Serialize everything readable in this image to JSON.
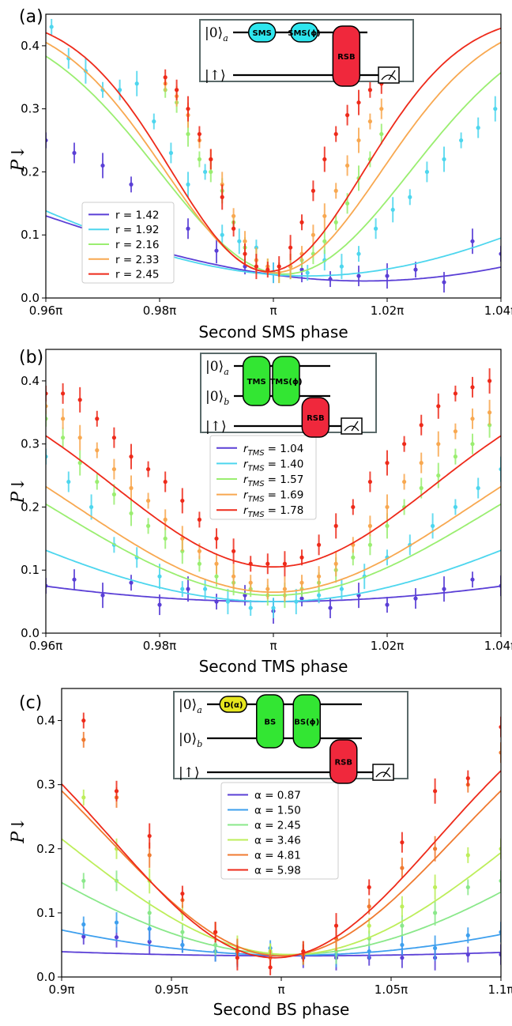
{
  "figure": {
    "panels": [
      {
        "label": "(a)",
        "circuit": {
          "rows": [
            {
              "ket": "|0⟩",
              "sub": "a"
            },
            {
              "ket": "|↑⟩",
              "sub": ""
            }
          ],
          "gates": [
            "SMS",
            "SMS(ϕ)",
            "RSB"
          ],
          "gate_colors": [
            "#2ee6ee",
            "#2ee6ee",
            "#f0283c"
          ]
        }
      },
      {
        "label": "(b)",
        "circuit": {
          "rows": [
            {
              "ket": "|0⟩",
              "sub": "a"
            },
            {
              "ket": "|0⟩",
              "sub": "b"
            },
            {
              "ket": "|↑⟩",
              "sub": ""
            }
          ],
          "gates": [
            "TMS",
            "TMS(ϕ)",
            "RSB"
          ],
          "gate_colors": [
            "#33e633",
            "#33e633",
            "#f0283c"
          ]
        }
      },
      {
        "label": "(c)",
        "circuit": {
          "rows": [
            {
              "ket": "|0⟩",
              "sub": "a"
            },
            {
              "ket": "|0⟩",
              "sub": "b"
            },
            {
              "ket": "|↑⟩",
              "sub": ""
            }
          ],
          "gates": [
            "D(α)",
            "BS",
            "BS(ϕ)",
            "RSB"
          ],
          "gate_colors": [
            "#e6e61e",
            "#33e633",
            "#33e633",
            "#f0283c"
          ]
        }
      }
    ]
  },
  "chart_data": [
    {
      "type": "line",
      "panel": "(a)",
      "xlabel": "Second SMS phase",
      "ylabel": "P↓",
      "xlim": [
        0.96,
        1.04
      ],
      "ylim": [
        0.0,
        0.45
      ],
      "xticks": [
        0.96,
        0.98,
        1.0,
        1.02,
        1.04
      ],
      "xtick_labels": [
        "0.96π",
        "0.98π",
        "π",
        "1.02π",
        "1.04π"
      ],
      "yticks": [
        0.0,
        0.1,
        0.2,
        0.3,
        0.4
      ],
      "ytick_labels": [
        "0.0",
        "0.1",
        "0.2",
        "0.3",
        "0.4"
      ],
      "legend_position": "lower-left",
      "series": [
        {
          "name": "r = 1.42",
          "color": "#5a3fd6",
          "fit": {
            "min_x": 1.016,
            "min_y": 0.027,
            "max_y": 0.36,
            "width": 0.065
          },
          "data_x": [
            0.96,
            0.965,
            0.97,
            0.975,
            0.985,
            0.99,
            0.995,
            1.0,
            1.005,
            1.01,
            1.015,
            1.02,
            1.025,
            1.03,
            1.035,
            1.04
          ],
          "data_y": [
            0.25,
            0.23,
            0.21,
            0.18,
            0.11,
            0.075,
            0.05,
            0.04,
            0.045,
            0.03,
            0.035,
            0.035,
            0.045,
            0.025,
            0.09,
            0.07
          ]
        },
        {
          "name": "r = 1.92",
          "color": "#4dd6ee",
          "fit": {
            "min_x": 1.006,
            "min_y": 0.035,
            "max_y": 0.44,
            "width": 0.06
          },
          "data_x": [
            0.961,
            0.964,
            0.967,
            0.97,
            0.973,
            0.976,
            0.979,
            0.982,
            0.985,
            0.988,
            0.991,
            0.994,
            0.997,
            1.0,
            1.003,
            1.006,
            1.009,
            1.012,
            1.015,
            1.018,
            1.021,
            1.024,
            1.027,
            1.03,
            1.033,
            1.036,
            1.039
          ],
          "data_y": [
            0.43,
            0.38,
            0.36,
            0.33,
            0.33,
            0.34,
            0.28,
            0.23,
            0.18,
            0.2,
            0.1,
            0.09,
            0.08,
            0.04,
            0.05,
            0.04,
            0.06,
            0.05,
            0.07,
            0.11,
            0.14,
            0.16,
            0.2,
            0.22,
            0.25,
            0.27,
            0.3
          ]
        },
        {
          "name": "r = 2.16",
          "color": "#9aee70",
          "fit": {
            "min_x": 1.002,
            "min_y": 0.038,
            "max_y": 0.45,
            "width": 0.022
          },
          "data_x": [
            0.981,
            0.983,
            0.985,
            0.987,
            0.989,
            0.991,
            0.993,
            0.995,
            0.997,
            0.999,
            1.001,
            1.003,
            1.005,
            1.007,
            1.009,
            1.011,
            1.013,
            1.015,
            1.017,
            1.019
          ],
          "data_y": [
            0.33,
            0.31,
            0.26,
            0.22,
            0.2,
            0.17,
            0.12,
            0.08,
            0.06,
            0.05,
            0.04,
            0.05,
            0.06,
            0.07,
            0.09,
            0.12,
            0.15,
            0.19,
            0.22,
            0.26
          ]
        },
        {
          "name": "r = 2.33",
          "color": "#f8a850",
          "fit": {
            "min_x": 1.0,
            "min_y": 0.04,
            "max_y": 0.45,
            "width": 0.019
          },
          "data_x": [
            0.981,
            0.983,
            0.985,
            0.987,
            0.989,
            0.991,
            0.993,
            0.995,
            0.997,
            0.999,
            1.001,
            1.003,
            1.005,
            1.007,
            1.009,
            1.011,
            1.013,
            1.015,
            1.017,
            1.019
          ],
          "data_y": [
            0.34,
            0.32,
            0.29,
            0.25,
            0.22,
            0.18,
            0.13,
            0.09,
            0.06,
            0.05,
            0.04,
            0.05,
            0.07,
            0.1,
            0.13,
            0.17,
            0.21,
            0.25,
            0.28,
            0.3
          ]
        },
        {
          "name": "r = 2.45",
          "color": "#ee2a1a",
          "fit": {
            "min_x": 0.999,
            "min_y": 0.042,
            "max_y": 0.45,
            "width": 0.017
          },
          "data_x": [
            0.981,
            0.983,
            0.985,
            0.987,
            0.989,
            0.991,
            0.993,
            0.995,
            0.997,
            0.999,
            1.001,
            1.003,
            1.005,
            1.007,
            1.009,
            1.011,
            1.013,
            1.015,
            1.017,
            1.019
          ],
          "data_y": [
            0.35,
            0.33,
            0.3,
            0.26,
            0.22,
            0.16,
            0.11,
            0.07,
            0.05,
            0.045,
            0.05,
            0.08,
            0.12,
            0.17,
            0.22,
            0.26,
            0.29,
            0.31,
            0.33,
            0.34
          ]
        }
      ]
    },
    {
      "type": "line",
      "panel": "(b)",
      "xlabel": "Second TMS phase",
      "ylabel": "P↓",
      "xlim": [
        0.96,
        1.04
      ],
      "ylim": [
        0.0,
        0.45
      ],
      "xticks": [
        0.96,
        0.98,
        1.0,
        1.02,
        1.04
      ],
      "xtick_labels": [
        "0.96π",
        "0.98π",
        "π",
        "1.02π",
        "1.04π"
      ],
      "yticks": [
        0.0,
        0.1,
        0.2,
        0.3,
        0.4
      ],
      "ytick_labels": [
        "0.0",
        "0.1",
        "0.2",
        "0.3",
        "0.4"
      ],
      "legend_position": "upper-center",
      "legend_var": "r",
      "legend_sub": "TMS",
      "series": [
        {
          "name": "r_TMS = 1.04",
          "label_value": "= 1.04",
          "color": "#5a3fd6",
          "fit": {
            "min_x": 1.0,
            "min_y": 0.05,
            "max_y": 0.4,
            "width": 0.105
          },
          "data_x": [
            0.96,
            0.965,
            0.97,
            0.975,
            0.98,
            0.985,
            0.99,
            0.995,
            1.0,
            1.005,
            1.01,
            1.015,
            1.02,
            1.025,
            1.03,
            1.035,
            1.04
          ],
          "data_y": [
            0.075,
            0.085,
            0.06,
            0.08,
            0.045,
            0.07,
            0.05,
            0.06,
            0.035,
            0.055,
            0.04,
            0.06,
            0.045,
            0.055,
            0.07,
            0.085,
            0.075
          ]
        },
        {
          "name": "r_TMS = 1.40",
          "label_value": "= 1.40",
          "color": "#4dd6ee",
          "fit": {
            "min_x": 1.0,
            "min_y": 0.05,
            "max_y": 0.4,
            "width": 0.055
          },
          "data_x": [
            0.96,
            0.964,
            0.968,
            0.972,
            0.976,
            0.98,
            0.984,
            0.988,
            0.992,
            0.996,
            1.0,
            1.004,
            1.008,
            1.012,
            1.016,
            1.02,
            1.024,
            1.028,
            1.032,
            1.036,
            1.04
          ],
          "data_y": [
            0.28,
            0.24,
            0.2,
            0.14,
            0.12,
            0.09,
            0.07,
            0.07,
            0.05,
            0.04,
            0.04,
            0.05,
            0.06,
            0.07,
            0.09,
            0.12,
            0.14,
            0.17,
            0.2,
            0.23,
            0.26
          ]
        },
        {
          "name": "r_TMS = 1.57",
          "label_value": "= 1.57",
          "color": "#9aee70",
          "fit": {
            "min_x": 1.0,
            "min_y": 0.06,
            "max_y": 0.4,
            "width": 0.038
          },
          "data_x": [
            0.96,
            0.963,
            0.966,
            0.969,
            0.972,
            0.975,
            0.978,
            0.981,
            0.984,
            0.987,
            0.99,
            0.993,
            0.996,
            0.999,
            1.002,
            1.005,
            1.008,
            1.011,
            1.014,
            1.017,
            1.02,
            1.023,
            1.026,
            1.029,
            1.032,
            1.035,
            1.038
          ],
          "data_y": [
            0.34,
            0.31,
            0.27,
            0.24,
            0.22,
            0.19,
            0.17,
            0.15,
            0.13,
            0.11,
            0.09,
            0.08,
            0.07,
            0.06,
            0.06,
            0.07,
            0.08,
            0.1,
            0.12,
            0.14,
            0.17,
            0.2,
            0.23,
            0.25,
            0.28,
            0.3,
            0.33
          ]
        },
        {
          "name": "r_TMS = 1.69",
          "label_value": "= 1.69",
          "color": "#f8a850",
          "fit": {
            "min_x": 1.0,
            "min_y": 0.065,
            "max_y": 0.4,
            "width": 0.034
          },
          "data_x": [
            0.96,
            0.963,
            0.966,
            0.969,
            0.972,
            0.975,
            0.978,
            0.981,
            0.984,
            0.987,
            0.99,
            0.993,
            0.996,
            0.999,
            1.002,
            1.005,
            1.008,
            1.011,
            1.014,
            1.017,
            1.02,
            1.023,
            1.026,
            1.029,
            1.032,
            1.035,
            1.038
          ],
          "data_y": [
            0.36,
            0.34,
            0.31,
            0.29,
            0.26,
            0.23,
            0.21,
            0.18,
            0.15,
            0.13,
            0.11,
            0.09,
            0.08,
            0.07,
            0.07,
            0.08,
            0.09,
            0.11,
            0.14,
            0.17,
            0.2,
            0.24,
            0.27,
            0.3,
            0.32,
            0.34,
            0.35
          ]
        },
        {
          "name": "r_TMS = 1.78",
          "label_value": "= 1.78",
          "color": "#ee2a1a",
          "fit": {
            "min_x": 1.0,
            "min_y": 0.105,
            "max_y": 0.43,
            "width": 0.028
          },
          "data_x": [
            0.96,
            0.963,
            0.966,
            0.969,
            0.972,
            0.975,
            0.978,
            0.981,
            0.984,
            0.987,
            0.99,
            0.993,
            0.996,
            0.999,
            1.002,
            1.005,
            1.008,
            1.011,
            1.014,
            1.017,
            1.02,
            1.023,
            1.026,
            1.029,
            1.032,
            1.035,
            1.038
          ],
          "data_y": [
            0.38,
            0.38,
            0.37,
            0.34,
            0.31,
            0.28,
            0.26,
            0.24,
            0.21,
            0.18,
            0.15,
            0.13,
            0.11,
            0.11,
            0.11,
            0.12,
            0.14,
            0.17,
            0.2,
            0.24,
            0.27,
            0.3,
            0.33,
            0.36,
            0.38,
            0.39,
            0.4
          ]
        }
      ]
    },
    {
      "type": "line",
      "panel": "(c)",
      "xlabel": "Second BS phase",
      "ylabel": "P↓",
      "xlim": [
        0.9,
        1.1
      ],
      "ylim": [
        0.0,
        0.45
      ],
      "xticks": [
        0.9,
        0.95,
        1.0,
        1.05,
        1.1
      ],
      "xtick_labels": [
        "0.9π",
        "0.95π",
        "π",
        "1.05π",
        "1.1π"
      ],
      "yticks": [
        0.0,
        0.1,
        0.2,
        0.3,
        0.4
      ],
      "ytick_labels": [
        "0.0",
        "0.1",
        "0.2",
        "0.3",
        "0.4"
      ],
      "legend_position": "upper-center",
      "series": [
        {
          "name": "α = 0.87",
          "color": "#5a3fd6",
          "fit": {
            "min_x": 1.005,
            "min_y": 0.033,
            "max_y": 0.33,
            "width": 0.5
          },
          "data_x": [
            0.91,
            0.925,
            0.94,
            0.955,
            0.97,
            0.98,
            0.995,
            1.01,
            1.025,
            1.04,
            1.055,
            1.07,
            1.085,
            1.1
          ],
          "data_y": [
            0.063,
            0.062,
            0.055,
            0.05,
            0.04,
            0.038,
            0.037,
            0.03,
            0.03,
            0.03,
            0.03,
            0.03,
            0.035,
            0.035
          ]
        },
        {
          "name": "α = 1.50",
          "color": "#3d9fee",
          "fit": {
            "min_x": 1.005,
            "min_y": 0.034,
            "max_y": 0.5,
            "width": 0.25
          },
          "data_x": [
            0.91,
            0.925,
            0.94,
            0.955,
            0.97,
            0.98,
            0.995,
            1.01,
            1.025,
            1.04,
            1.055,
            1.07,
            1.085,
            1.1
          ],
          "data_y": [
            0.082,
            0.085,
            0.075,
            0.05,
            0.04,
            0.035,
            0.045,
            0.035,
            0.035,
            0.04,
            0.05,
            0.045,
            0.065,
            0.07
          ]
        },
        {
          "name": "α = 2.45",
          "color": "#8ae88a",
          "fit": {
            "min_x": 1.004,
            "min_y": 0.035,
            "max_y": 0.5,
            "width": 0.14
          },
          "data_x": [
            0.91,
            0.925,
            0.94,
            0.955,
            0.97,
            0.98,
            0.995,
            1.01,
            1.025,
            1.04,
            1.055,
            1.07,
            1.085,
            1.1
          ],
          "data_y": [
            0.15,
            0.15,
            0.1,
            0.07,
            0.05,
            0.04,
            0.04,
            0.035,
            0.04,
            0.06,
            0.08,
            0.1,
            0.14,
            0.15
          ]
        },
        {
          "name": "α = 3.46",
          "color": "#bdee5a",
          "fit": {
            "min_x": 1.004,
            "min_y": 0.035,
            "max_y": 0.5,
            "width": 0.105
          },
          "data_x": [
            0.91,
            0.925,
            0.94,
            0.955,
            0.97,
            0.98,
            0.995,
            1.01,
            1.025,
            1.04,
            1.055,
            1.07,
            1.085,
            1.1
          ],
          "data_y": [
            0.28,
            0.2,
            0.15,
            0.1,
            0.07,
            0.045,
            0.04,
            0.04,
            0.06,
            0.08,
            0.11,
            0.14,
            0.19,
            0.2
          ]
        },
        {
          "name": "α = 4.81",
          "color": "#f07a30",
          "fit": {
            "min_x": 1.0,
            "min_y": 0.033,
            "max_y": 0.5,
            "width": 0.079
          },
          "data_x": [
            0.91,
            0.925,
            0.94,
            0.955,
            0.97,
            0.98,
            0.995,
            1.01,
            1.025,
            1.04,
            1.055,
            1.07,
            1.085,
            1.1
          ],
          "data_y": [
            0.37,
            0.28,
            0.19,
            0.12,
            0.07,
            0.04,
            0.03,
            0.035,
            0.06,
            0.11,
            0.17,
            0.2,
            0.3,
            0.35
          ]
        },
        {
          "name": "α = 5.98",
          "color": "#ee2a1a",
          "fit": {
            "min_x": 0.997,
            "min_y": 0.03,
            "max_y": 0.5,
            "width": 0.074
          },
          "data_x": [
            0.91,
            0.925,
            0.94,
            0.955,
            0.97,
            0.98,
            0.995,
            1.01,
            1.025,
            1.04,
            1.055,
            1.07,
            1.085,
            1.1
          ],
          "data_y": [
            0.4,
            0.29,
            0.22,
            0.13,
            0.07,
            0.03,
            0.015,
            0.04,
            0.08,
            0.14,
            0.21,
            0.29,
            0.31,
            0.39
          ]
        }
      ]
    }
  ]
}
